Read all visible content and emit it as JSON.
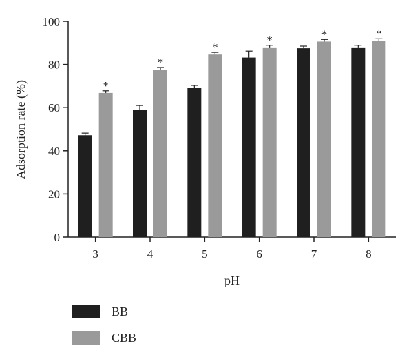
{
  "chart_data": {
    "type": "bar",
    "categories": [
      "3",
      "4",
      "5",
      "6",
      "7",
      "8"
    ],
    "series": [
      {
        "name": "BB",
        "color": "#1f1f1f",
        "values": [
          47.2,
          59.0,
          69.3,
          83.2,
          87.5,
          87.9
        ],
        "errors": [
          1.0,
          2.0,
          1.0,
          3.0,
          1.0,
          1.0
        ],
        "star": [
          false,
          false,
          false,
          false,
          false,
          false
        ]
      },
      {
        "name": "CBB",
        "color": "#9a9a9a",
        "values": [
          66.8,
          77.6,
          84.6,
          87.9,
          90.6,
          90.9
        ],
        "errors": [
          1.0,
          1.0,
          1.0,
          1.0,
          1.0,
          1.0
        ],
        "star": [
          true,
          true,
          true,
          true,
          true,
          true
        ]
      }
    ],
    "xlabel": "pH",
    "ylabel": "Adsorption rate (%)",
    "ylim": [
      0,
      100
    ],
    "yticks": [
      0,
      20,
      40,
      60,
      80,
      100
    ],
    "significance_marker": "*",
    "grid": false,
    "legend_position": "bottom-left"
  }
}
